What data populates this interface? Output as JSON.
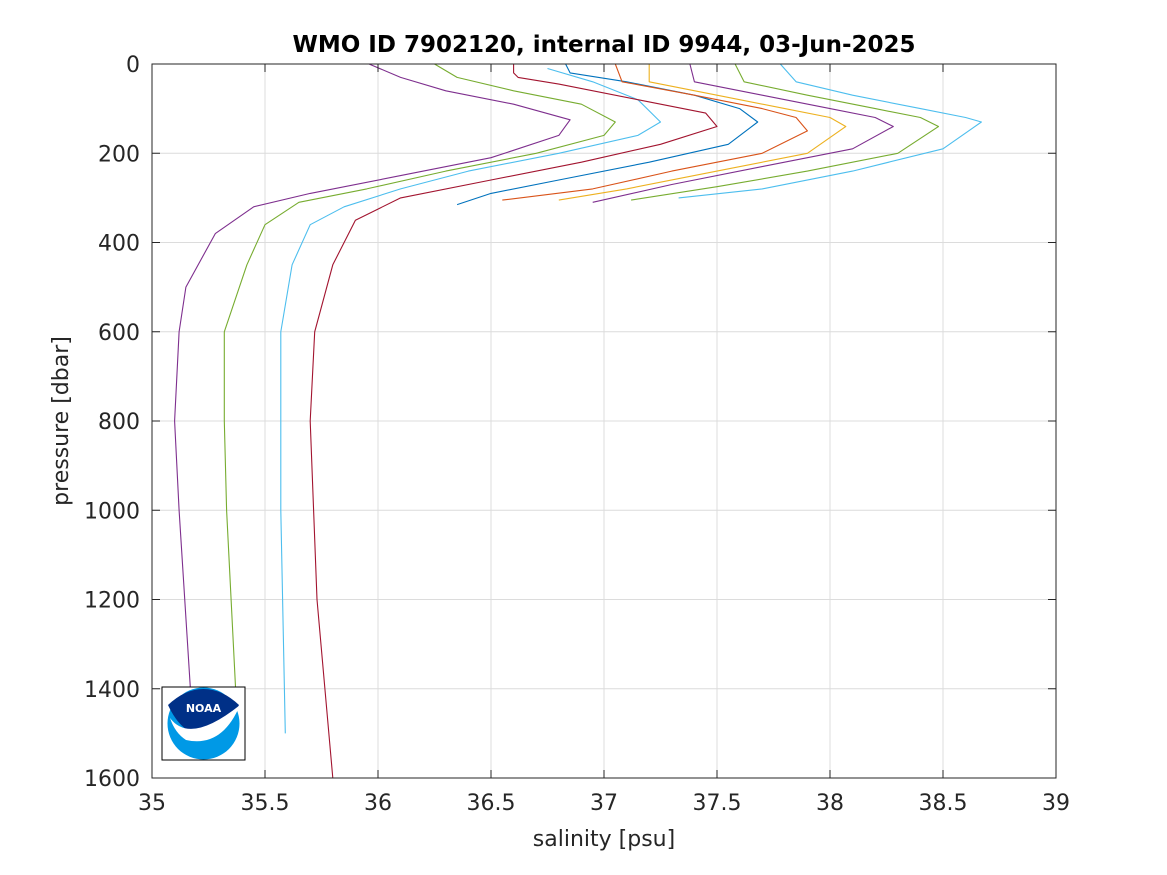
{
  "chart_data": {
    "type": "line",
    "title": "WMO ID 7902120, internal ID 9944, 03-Jun-2025",
    "xlabel": "salinity [psu]",
    "ylabel": "pressure [dbar]",
    "xlim": [
      35,
      39
    ],
    "ylim": [
      0,
      1600
    ],
    "y_reversed": true,
    "grid": true,
    "x_ticks": [
      "35",
      "35.5",
      "36",
      "36.5",
      "37",
      "37.5",
      "38",
      "38.5",
      "39"
    ],
    "y_ticks": [
      "0",
      "200",
      "400",
      "600",
      "800",
      "1000",
      "1200",
      "1400",
      "1600"
    ],
    "series": [
      {
        "color": "#7E2F8E",
        "x": [
          35.96,
          36.1,
          36.3,
          36.6,
          36.85,
          36.8,
          36.5,
          36.1,
          35.7,
          35.45,
          35.28,
          35.15,
          35.12,
          35.1,
          35.12,
          35.17
        ],
        "y": [
          0,
          30,
          60,
          90,
          125,
          160,
          210,
          250,
          290,
          320,
          380,
          500,
          600,
          800,
          1000,
          1400
        ]
      },
      {
        "color": "#77AC30",
        "x": [
          36.25,
          36.35,
          36.6,
          36.9,
          37.05,
          37.0,
          36.7,
          36.3,
          35.95,
          35.65,
          35.5,
          35.42,
          35.32,
          35.32,
          35.33,
          35.37
        ],
        "y": [
          0,
          30,
          60,
          90,
          130,
          160,
          200,
          240,
          280,
          310,
          360,
          450,
          600,
          800,
          1000,
          1400
        ]
      },
      {
        "color": "#4DBEEE",
        "x": [
          36.75,
          36.95,
          37.15,
          37.25,
          37.15,
          36.8,
          36.4,
          36.1,
          35.85,
          35.7,
          35.62,
          35.57,
          35.57,
          35.59
        ],
        "y": [
          10,
          40,
          80,
          130,
          160,
          200,
          240,
          280,
          320,
          360,
          450,
          600,
          1000,
          1500
        ]
      },
      {
        "color": "#A2142F",
        "x": [
          36.6,
          36.6,
          36.62,
          36.8,
          37.15,
          37.45,
          37.5,
          37.25,
          36.9,
          36.5,
          36.1,
          35.9,
          35.8,
          35.72,
          35.7,
          35.73,
          35.8
        ],
        "y": [
          0,
          20,
          30,
          45,
          80,
          110,
          140,
          180,
          220,
          260,
          300,
          350,
          450,
          600,
          800,
          1200,
          1600
        ]
      },
      {
        "color": "#0072BD",
        "x": [
          36.83,
          36.85,
          37.1,
          37.4,
          37.6,
          37.68,
          37.55,
          37.2,
          36.8,
          36.5,
          36.35
        ],
        "y": [
          0,
          20,
          40,
          70,
          100,
          130,
          180,
          220,
          260,
          290,
          315
        ]
      },
      {
        "color": "#D95319",
        "x": [
          37.05,
          37.08,
          37.4,
          37.7,
          37.85,
          37.9,
          37.7,
          37.3,
          36.95,
          36.55
        ],
        "y": [
          0,
          40,
          70,
          100,
          120,
          150,
          200,
          240,
          280,
          305
        ]
      },
      {
        "color": "#EDB120",
        "x": [
          37.2,
          37.2,
          37.5,
          37.8,
          38.0,
          38.07,
          37.9,
          37.5,
          37.1,
          36.8
        ],
        "y": [
          0,
          40,
          70,
          100,
          120,
          140,
          200,
          240,
          280,
          305
        ]
      },
      {
        "color": "#7E2F8E",
        "x": [
          37.38,
          37.4,
          37.7,
          38.0,
          38.2,
          38.28,
          38.1,
          37.7,
          37.3,
          36.95
        ],
        "y": [
          0,
          40,
          70,
          100,
          120,
          140,
          190,
          230,
          270,
          310
        ]
      },
      {
        "color": "#77AC30",
        "x": [
          37.58,
          37.62,
          37.9,
          38.2,
          38.4,
          38.48,
          38.3,
          37.9,
          37.5,
          37.12
        ],
        "y": [
          0,
          40,
          70,
          100,
          120,
          140,
          200,
          240,
          275,
          305
        ]
      },
      {
        "color": "#4DBEEE",
        "x": [
          37.78,
          37.85,
          38.1,
          38.4,
          38.6,
          38.67,
          38.5,
          38.1,
          37.7,
          37.33
        ],
        "y": [
          0,
          40,
          70,
          100,
          120,
          130,
          190,
          240,
          280,
          300
        ]
      }
    ]
  },
  "logo": {
    "text": "NOAA"
  }
}
